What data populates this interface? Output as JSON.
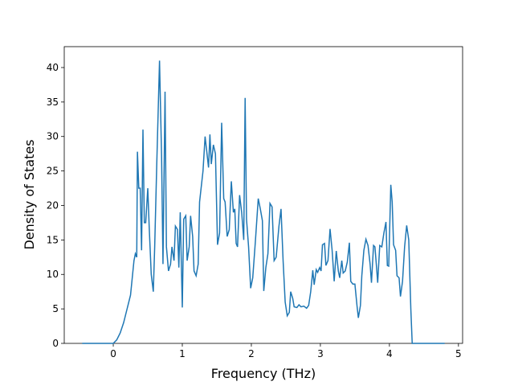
{
  "chart_data": {
    "type": "line",
    "xlabel": "Frequency (THz)",
    "ylabel": "Density of States",
    "xlim": [
      -0.71,
      5.06
    ],
    "ylim": [
      0,
      43.03
    ],
    "xticks": [
      0,
      1,
      2,
      3,
      4,
      5
    ],
    "yticks": [
      0,
      5,
      10,
      15,
      20,
      25,
      30,
      35,
      40
    ],
    "series": [
      {
        "color": "#1f77b4",
        "x": [
          -0.45,
          0,
          0.05,
          0.1,
          0.15,
          0.2,
          0.25,
          0.3,
          0.32,
          0.34,
          0.35,
          0.37,
          0.39,
          0.41,
          0.43,
          0.45,
          0.47,
          0.5,
          0.52,
          0.55,
          0.58,
          0.6,
          0.63,
          0.67,
          0.7,
          0.72,
          0.75,
          0.77,
          0.8,
          0.83,
          0.85,
          0.88,
          0.9,
          0.93,
          0.95,
          0.97,
          1.0,
          1.02,
          1.05,
          1.07,
          1.1,
          1.12,
          1.15,
          1.17,
          1.2,
          1.23,
          1.25,
          1.3,
          1.33,
          1.38,
          1.4,
          1.42,
          1.45,
          1.48,
          1.51,
          1.54,
          1.57,
          1.6,
          1.62,
          1.65,
          1.68,
          1.71,
          1.74,
          1.76,
          1.78,
          1.8,
          1.83,
          1.86,
          1.89,
          1.91,
          1.93,
          1.96,
          1.99,
          2.02,
          2.06,
          2.1,
          2.13,
          2.16,
          2.18,
          2.21,
          2.24,
          2.27,
          2.3,
          2.33,
          2.36,
          2.4,
          2.43,
          2.46,
          2.49,
          2.52,
          2.55,
          2.57,
          2.6,
          2.62,
          2.66,
          2.69,
          2.72,
          2.76,
          2.8,
          2.83,
          2.86,
          2.89,
          2.91,
          2.94,
          2.96,
          2.99,
          3.01,
          3.03,
          3.06,
          3.08,
          3.11,
          3.14,
          3.17,
          3.2,
          3.23,
          3.26,
          3.28,
          3.31,
          3.33,
          3.36,
          3.39,
          3.42,
          3.44,
          3.47,
          3.5,
          3.53,
          3.55,
          3.58,
          3.6,
          3.63,
          3.66,
          3.69,
          3.72,
          3.74,
          3.77,
          3.79,
          3.81,
          3.83,
          3.86,
          3.89,
          3.92,
          3.95,
          3.97,
          3.99,
          4.02,
          4.04,
          4.06,
          4.09,
          4.11,
          4.14,
          4.16,
          4.19,
          4.22,
          4.25,
          4.28,
          4.31,
          4.33,
          4.8
        ],
        "values": [
          0,
          0,
          0.5,
          1.5,
          3,
          5,
          7,
          12,
          13,
          12.5,
          27.8,
          22.5,
          22.5,
          13.5,
          31,
          17.5,
          17.5,
          22.5,
          17,
          10,
          7.5,
          14,
          26,
          41,
          27,
          11.5,
          36.5,
          14,
          10.5,
          11.5,
          14,
          12,
          17,
          16.5,
          11,
          19,
          5.2,
          18,
          18.5,
          12,
          14,
          18.5,
          15.5,
          10.5,
          9.8,
          11.5,
          20.5,
          25,
          30,
          25.5,
          30.3,
          26,
          28.8,
          27.5,
          14.3,
          16,
          32,
          21,
          20.5,
          15.5,
          16.5,
          23.5,
          19,
          19.5,
          14.5,
          14,
          21.5,
          19,
          15,
          35.6,
          18,
          14,
          8,
          9.5,
          15,
          21,
          19.5,
          17.8,
          7.6,
          11,
          13,
          20.3,
          19.8,
          12,
          12.5,
          17,
          19.5,
          12,
          6,
          4,
          4.5,
          7.5,
          6.5,
          5.3,
          5.2,
          5.6,
          5.3,
          5.4,
          5.1,
          5.5,
          7.5,
          10.6,
          8.5,
          10.7,
          10.3,
          11,
          10.5,
          14.3,
          14.5,
          11.3,
          12,
          16.6,
          13.5,
          9,
          13.4,
          10.5,
          9.5,
          12,
          10.2,
          10.5,
          11.8,
          14.6,
          9,
          8.6,
          8.6,
          5.5,
          3.7,
          5.5,
          9.8,
          13.5,
          15.1,
          14.2,
          11.5,
          8.8,
          14.2,
          14,
          11.5,
          8.8,
          14.2,
          14,
          16,
          17.6,
          11.3,
          11.2,
          23,
          20.5,
          14.3,
          13.5,
          9.8,
          9.5,
          6.8,
          9,
          14,
          17.1,
          15,
          5,
          0,
          0
        ]
      }
    ]
  }
}
